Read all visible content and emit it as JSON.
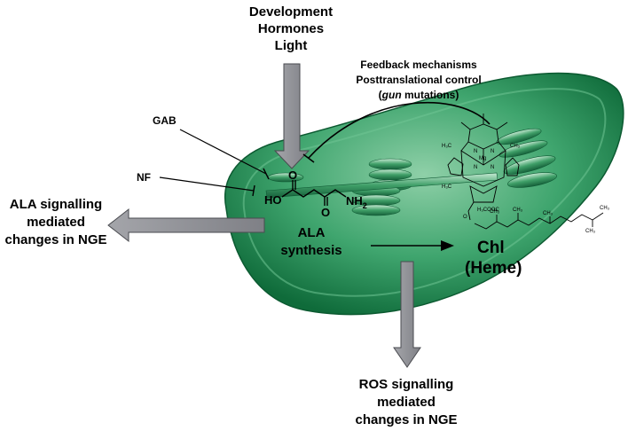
{
  "colors": {
    "chloroplast_outer": "#0f6b3a",
    "chloroplast_mid": "#2f9c62",
    "chloroplast_inner": "#8fd0a8",
    "arrow_fill": "#8d8e94",
    "arrow_stroke": "#4a4b50",
    "line": "#000000"
  },
  "signals": {
    "line1": "Development",
    "line2": "Hormones",
    "line3": "Light"
  },
  "feedback": {
    "line1": "Feedback mechanisms",
    "line2": "Posttranslational control",
    "paren_open": "(",
    "italic": "gun",
    "rest": " mutations)"
  },
  "inhibitors": {
    "gab": "GAB",
    "nf": "NF"
  },
  "ala_signalling": {
    "line1": "ALA signalling",
    "line2": "mediated",
    "line3": "changes in NGE"
  },
  "ala_molecule": {
    "ho": "HO",
    "o_top": "O",
    "o_bottom": "O",
    "nh": "NH",
    "sub": "2"
  },
  "ala_synthesis": {
    "line1": "ALA",
    "line2": "synthesis"
  },
  "product": {
    "line1": "Chl",
    "line2": "(Heme)"
  },
  "ros_signalling": {
    "line1": "ROS signalling",
    "line2": "mediated",
    "line3": "changes in NGE"
  },
  "chlorophyll_labels": {
    "mg": "Mg",
    "n1": "N",
    "n2": "N",
    "n3": "N",
    "n4": "N",
    "h3c_1": "H₃C",
    "h3c_2": "H₃C",
    "ch3_1": "CH₃",
    "coo": "H₃COOC",
    "o": "O",
    "ch3_2": "CH₃",
    "ch3_3": "CH₃",
    "ch3_4": "CH₃",
    "ch3_5": "CH₃",
    "ch3_6": "CH₃"
  },
  "icons": {
    "signal_arrow": "down-arrow-icon",
    "output_arrows": "block-arrow-icon"
  }
}
